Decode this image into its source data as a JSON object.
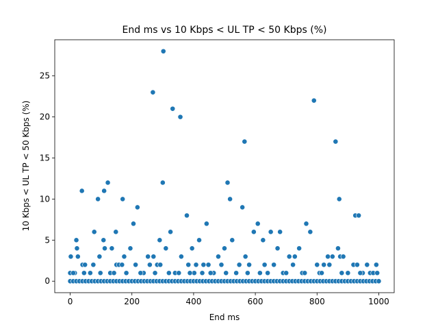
{
  "chart_data": {
    "type": "scatter",
    "title": "End ms vs 10 Kbps < UL TP < 50 Kbps (%)",
    "xlabel": "End ms",
    "ylabel": "10 Kbps < UL TP < 50 Kbps (%)",
    "xlim": [
      -50,
      1050
    ],
    "ylim": [
      -1.4,
      29.4
    ],
    "xticks": [
      0,
      200,
      400,
      600,
      800,
      1000
    ],
    "yticks": [
      0,
      5,
      10,
      15,
      20,
      25
    ],
    "grid": false,
    "legend": "none",
    "marker_color": "#1f77b4",
    "points": [
      {
        "x": 2,
        "y": 3
      },
      {
        "x": 15,
        "y": 1
      },
      {
        "x": 20,
        "y": 5
      },
      {
        "x": 22,
        "y": 4
      },
      {
        "x": 25,
        "y": 3
      },
      {
        "x": 38,
        "y": 11
      },
      {
        "x": 40,
        "y": 2
      },
      {
        "x": 48,
        "y": 2
      },
      {
        "x": 65,
        "y": 1
      },
      {
        "x": 75,
        "y": 2
      },
      {
        "x": 78,
        "y": 6
      },
      {
        "x": 90,
        "y": 10
      },
      {
        "x": 95,
        "y": 3
      },
      {
        "x": 110,
        "y": 11
      },
      {
        "x": 108,
        "y": 5
      },
      {
        "x": 112,
        "y": 4
      },
      {
        "x": 122,
        "y": 12
      },
      {
        "x": 130,
        "y": 1
      },
      {
        "x": 135,
        "y": 4
      },
      {
        "x": 148,
        "y": 6
      },
      {
        "x": 150,
        "y": 2
      },
      {
        "x": 158,
        "y": 2
      },
      {
        "x": 170,
        "y": 10
      },
      {
        "x": 168,
        "y": 2
      },
      {
        "x": 175,
        "y": 3
      },
      {
        "x": 182,
        "y": 1
      },
      {
        "x": 195,
        "y": 4
      },
      {
        "x": 205,
        "y": 7
      },
      {
        "x": 212,
        "y": 2
      },
      {
        "x": 218,
        "y": 9
      },
      {
        "x": 238,
        "y": 1
      },
      {
        "x": 252,
        "y": 3
      },
      {
        "x": 258,
        "y": 2
      },
      {
        "x": 268,
        "y": 23
      },
      {
        "x": 270,
        "y": 3
      },
      {
        "x": 275,
        "y": 1
      },
      {
        "x": 282,
        "y": 2
      },
      {
        "x": 290,
        "y": 5
      },
      {
        "x": 292,
        "y": 2
      },
      {
        "x": 302,
        "y": 28
      },
      {
        "x": 300,
        "y": 12
      },
      {
        "x": 310,
        "y": 4
      },
      {
        "x": 325,
        "y": 6
      },
      {
        "x": 332,
        "y": 21
      },
      {
        "x": 340,
        "y": 1
      },
      {
        "x": 352,
        "y": 1
      },
      {
        "x": 357,
        "y": 20
      },
      {
        "x": 360,
        "y": 3
      },
      {
        "x": 378,
        "y": 8
      },
      {
        "x": 383,
        "y": 2
      },
      {
        "x": 395,
        "y": 4
      },
      {
        "x": 402,
        "y": 1
      },
      {
        "x": 408,
        "y": 2
      },
      {
        "x": 418,
        "y": 5
      },
      {
        "x": 428,
        "y": 1
      },
      {
        "x": 432,
        "y": 2
      },
      {
        "x": 442,
        "y": 7
      },
      {
        "x": 448,
        "y": 2
      },
      {
        "x": 465,
        "y": 1
      },
      {
        "x": 480,
        "y": 3
      },
      {
        "x": 490,
        "y": 2
      },
      {
        "x": 500,
        "y": 4
      },
      {
        "x": 510,
        "y": 12
      },
      {
        "x": 518,
        "y": 10
      },
      {
        "x": 525,
        "y": 5
      },
      {
        "x": 538,
        "y": 1
      },
      {
        "x": 548,
        "y": 2
      },
      {
        "x": 558,
        "y": 9
      },
      {
        "x": 565,
        "y": 17
      },
      {
        "x": 568,
        "y": 3
      },
      {
        "x": 580,
        "y": 2
      },
      {
        "x": 595,
        "y": 6
      },
      {
        "x": 608,
        "y": 7
      },
      {
        "x": 615,
        "y": 1
      },
      {
        "x": 625,
        "y": 5
      },
      {
        "x": 640,
        "y": 1
      },
      {
        "x": 650,
        "y": 6
      },
      {
        "x": 660,
        "y": 2
      },
      {
        "x": 672,
        "y": 4
      },
      {
        "x": 680,
        "y": 6
      },
      {
        "x": 690,
        "y": 1
      },
      {
        "x": 710,
        "y": 3
      },
      {
        "x": 722,
        "y": 2
      },
      {
        "x": 728,
        "y": 3
      },
      {
        "x": 742,
        "y": 4
      },
      {
        "x": 752,
        "y": 1
      },
      {
        "x": 765,
        "y": 7
      },
      {
        "x": 778,
        "y": 6
      },
      {
        "x": 790,
        "y": 22
      },
      {
        "x": 800,
        "y": 2
      },
      {
        "x": 808,
        "y": 1
      },
      {
        "x": 822,
        "y": 2
      },
      {
        "x": 835,
        "y": 3
      },
      {
        "x": 840,
        "y": 2
      },
      {
        "x": 850,
        "y": 3
      },
      {
        "x": 860,
        "y": 17
      },
      {
        "x": 868,
        "y": 4
      },
      {
        "x": 872,
        "y": 10
      },
      {
        "x": 875,
        "y": 3
      },
      {
        "x": 885,
        "y": 3
      },
      {
        "x": 900,
        "y": 1
      },
      {
        "x": 918,
        "y": 2
      },
      {
        "x": 924,
        "y": 8
      },
      {
        "x": 930,
        "y": 2
      },
      {
        "x": 935,
        "y": 8
      },
      {
        "x": 948,
        "y": 1
      },
      {
        "x": 962,
        "y": 2
      },
      {
        "x": 972,
        "y": 1
      },
      {
        "x": 982,
        "y": 1
      },
      {
        "x": 992,
        "y": 2
      },
      {
        "x": 995,
        "y": 1
      },
      {
        "x": 0,
        "y": 1
      },
      {
        "x": 10,
        "y": 1
      },
      {
        "x": 45,
        "y": 1
      },
      {
        "x": 98,
        "y": 1
      },
      {
        "x": 142,
        "y": 1
      },
      {
        "x": 228,
        "y": 1
      },
      {
        "x": 320,
        "y": 1
      },
      {
        "x": 388,
        "y": 1
      },
      {
        "x": 455,
        "y": 1
      },
      {
        "x": 505,
        "y": 1
      },
      {
        "x": 575,
        "y": 1
      },
      {
        "x": 630,
        "y": 2
      },
      {
        "x": 700,
        "y": 1
      },
      {
        "x": 760,
        "y": 1
      },
      {
        "x": 815,
        "y": 1
      },
      {
        "x": 880,
        "y": 1
      },
      {
        "x": 940,
        "y": 1
      },
      {
        "x": 0,
        "y": 0
      },
      {
        "x": 10,
        "y": 0
      },
      {
        "x": 20,
        "y": 0
      },
      {
        "x": 30,
        "y": 0
      },
      {
        "x": 40,
        "y": 0
      },
      {
        "x": 50,
        "y": 0
      },
      {
        "x": 60,
        "y": 0
      },
      {
        "x": 70,
        "y": 0
      },
      {
        "x": 80,
        "y": 0
      },
      {
        "x": 90,
        "y": 0
      },
      {
        "x": 100,
        "y": 0
      },
      {
        "x": 110,
        "y": 0
      },
      {
        "x": 120,
        "y": 0
      },
      {
        "x": 130,
        "y": 0
      },
      {
        "x": 140,
        "y": 0
      },
      {
        "x": 150,
        "y": 0
      },
      {
        "x": 160,
        "y": 0
      },
      {
        "x": 170,
        "y": 0
      },
      {
        "x": 180,
        "y": 0
      },
      {
        "x": 190,
        "y": 0
      },
      {
        "x": 200,
        "y": 0
      },
      {
        "x": 210,
        "y": 0
      },
      {
        "x": 220,
        "y": 0
      },
      {
        "x": 230,
        "y": 0
      },
      {
        "x": 240,
        "y": 0
      },
      {
        "x": 250,
        "y": 0
      },
      {
        "x": 260,
        "y": 0
      },
      {
        "x": 270,
        "y": 0
      },
      {
        "x": 280,
        "y": 0
      },
      {
        "x": 290,
        "y": 0
      },
      {
        "x": 300,
        "y": 0
      },
      {
        "x": 310,
        "y": 0
      },
      {
        "x": 320,
        "y": 0
      },
      {
        "x": 330,
        "y": 0
      },
      {
        "x": 340,
        "y": 0
      },
      {
        "x": 350,
        "y": 0
      },
      {
        "x": 360,
        "y": 0
      },
      {
        "x": 370,
        "y": 0
      },
      {
        "x": 380,
        "y": 0
      },
      {
        "x": 390,
        "y": 0
      },
      {
        "x": 400,
        "y": 0
      },
      {
        "x": 410,
        "y": 0
      },
      {
        "x": 420,
        "y": 0
      },
      {
        "x": 430,
        "y": 0
      },
      {
        "x": 440,
        "y": 0
      },
      {
        "x": 450,
        "y": 0
      },
      {
        "x": 460,
        "y": 0
      },
      {
        "x": 470,
        "y": 0
      },
      {
        "x": 480,
        "y": 0
      },
      {
        "x": 490,
        "y": 0
      },
      {
        "x": 500,
        "y": 0
      },
      {
        "x": 510,
        "y": 0
      },
      {
        "x": 520,
        "y": 0
      },
      {
        "x": 530,
        "y": 0
      },
      {
        "x": 540,
        "y": 0
      },
      {
        "x": 550,
        "y": 0
      },
      {
        "x": 560,
        "y": 0
      },
      {
        "x": 570,
        "y": 0
      },
      {
        "x": 580,
        "y": 0
      },
      {
        "x": 590,
        "y": 0
      },
      {
        "x": 600,
        "y": 0
      },
      {
        "x": 610,
        "y": 0
      },
      {
        "x": 620,
        "y": 0
      },
      {
        "x": 630,
        "y": 0
      },
      {
        "x": 640,
        "y": 0
      },
      {
        "x": 650,
        "y": 0
      },
      {
        "x": 660,
        "y": 0
      },
      {
        "x": 670,
        "y": 0
      },
      {
        "x": 680,
        "y": 0
      },
      {
        "x": 690,
        "y": 0
      },
      {
        "x": 700,
        "y": 0
      },
      {
        "x": 710,
        "y": 0
      },
      {
        "x": 720,
        "y": 0
      },
      {
        "x": 730,
        "y": 0
      },
      {
        "x": 740,
        "y": 0
      },
      {
        "x": 750,
        "y": 0
      },
      {
        "x": 760,
        "y": 0
      },
      {
        "x": 770,
        "y": 0
      },
      {
        "x": 780,
        "y": 0
      },
      {
        "x": 790,
        "y": 0
      },
      {
        "x": 800,
        "y": 0
      },
      {
        "x": 810,
        "y": 0
      },
      {
        "x": 820,
        "y": 0
      },
      {
        "x": 830,
        "y": 0
      },
      {
        "x": 840,
        "y": 0
      },
      {
        "x": 850,
        "y": 0
      },
      {
        "x": 860,
        "y": 0
      },
      {
        "x": 870,
        "y": 0
      },
      {
        "x": 880,
        "y": 0
      },
      {
        "x": 890,
        "y": 0
      },
      {
        "x": 900,
        "y": 0
      },
      {
        "x": 910,
        "y": 0
      },
      {
        "x": 920,
        "y": 0
      },
      {
        "x": 930,
        "y": 0
      },
      {
        "x": 940,
        "y": 0
      },
      {
        "x": 950,
        "y": 0
      },
      {
        "x": 960,
        "y": 0
      },
      {
        "x": 970,
        "y": 0
      },
      {
        "x": 980,
        "y": 0
      },
      {
        "x": 990,
        "y": 0
      },
      {
        "x": 1000,
        "y": 0
      }
    ]
  }
}
